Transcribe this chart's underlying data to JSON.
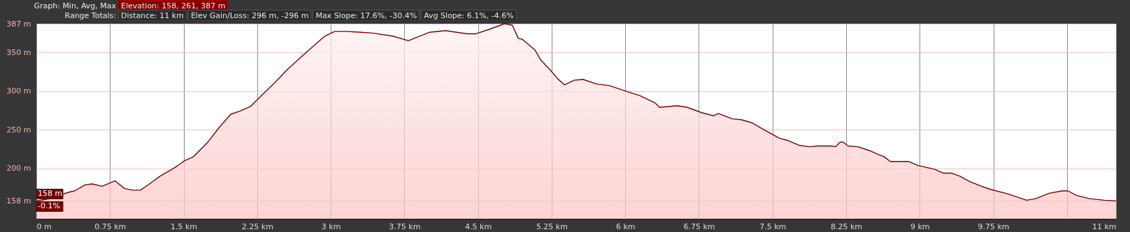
{
  "chart_data": {
    "type": "area",
    "annotations": [
      "Graph: Min, Avg, Max",
      "Elevation: 158, 261, 387 m",
      "Range Totals:",
      "Distance: 11 km",
      "Elev Gain/Loss: 296 m, -296 m",
      "Max Slope: 17.6%, -30.4%",
      "Avg Slope: 6.1%, -4.6%",
      {
        "text": "158 m",
        "x": 0,
        "y": 158
      },
      {
        "text": "-0.1%",
        "x": 0,
        "y": 158
      }
    ],
    "x": [
      0,
      0.14,
      0.32,
      0.39,
      0.5,
      0.57,
      0.67,
      0.8,
      0.9,
      0.98,
      1.06,
      1.13,
      1.26,
      1.41,
      1.51,
      1.6,
      1.74,
      1.87,
      1.98,
      2.07,
      2.18,
      2.3,
      2.43,
      2.56,
      2.68,
      2.84,
      2.94,
      3.04,
      3.17,
      3.42,
      3.63,
      3.79,
      4.01,
      4.17,
      4.39,
      4.48,
      4.62,
      4.77,
      4.85,
      4.91,
      4.95,
      5.08,
      5.14,
      5.23,
      5.31,
      5.38,
      5.48,
      5.57,
      5.71,
      5.84,
      5.98,
      6.15,
      6.3,
      6.35,
      6.53,
      6.63,
      6.78,
      6.9,
      6.95,
      7.09,
      7.18,
      7.29,
      7.4,
      7.47,
      7.57,
      7.66,
      7.77,
      7.88,
      7.96,
      8.1,
      8.14,
      8.19,
      8.22,
      8.27,
      8.37,
      8.49,
      8.56,
      8.64,
      8.7,
      8.78,
      8.89,
      8.98,
      9.08,
      9.15,
      9.24,
      9.32,
      9.41,
      9.51,
      9.63,
      9.72,
      9.9,
      10.09,
      10.18,
      10.32,
      10.45,
      10.51,
      10.6,
      10.73,
      10.88,
      11
    ],
    "series": [
      {
        "color": "#7a0000",
        "values": [
          158,
          161,
          169,
          171,
          179,
          180,
          177,
          184,
          174,
          172,
          172,
          178,
          190,
          201,
          210,
          215,
          233,
          254,
          270,
          274,
          280,
          295,
          311,
          328,
          342,
          360,
          371,
          377,
          377,
          375,
          371,
          365,
          376,
          378,
          374,
          374,
          380,
          387,
          385,
          368,
          367,
          353,
          340,
          328,
          316,
          308,
          314,
          315,
          309,
          307,
          301,
          294,
          285,
          279,
          281,
          279,
          272,
          268,
          271,
          264,
          263,
          259,
          251,
          246,
          239,
          236,
          230,
          228,
          229,
          229,
          228,
          234,
          234,
          229,
          228,
          223,
          219,
          215,
          209,
          209,
          209,
          204,
          201,
          199,
          194,
          194,
          190,
          183,
          177,
          173,
          167,
          159,
          161,
          168,
          171,
          171,
          165,
          161,
          159,
          158
        ]
      }
    ],
    "xlim": [
      0,
      11
    ],
    "xticks": [
      {
        "value": 0,
        "label": "0 m"
      },
      {
        "value": 0.75,
        "label": "0.75 km"
      },
      {
        "value": 1.5,
        "label": "1.5 km"
      },
      {
        "value": 2.25,
        "label": "2.25 km"
      },
      {
        "value": 3,
        "label": "3 km"
      },
      {
        "value": 3.75,
        "label": "3.75 km"
      },
      {
        "value": 4.5,
        "label": "4.5 km"
      },
      {
        "value": 5.25,
        "label": "5.25 km"
      },
      {
        "value": 6,
        "label": "6 km"
      },
      {
        "value": 6.75,
        "label": "6.75 km"
      },
      {
        "value": 7.5,
        "label": "7.5 km"
      },
      {
        "value": 8.25,
        "label": "8.25 km"
      },
      {
        "value": 9,
        "label": "9 km"
      },
      {
        "value": 9.75,
        "label": "9.75 km"
      },
      {
        "value": 10.5,
        "label": null
      },
      {
        "value": 11,
        "label": "11 km"
      }
    ],
    "ylim": [
      135,
      387
    ],
    "yticks": [
      {
        "value": 158,
        "label": "158 m"
      },
      {
        "value": 200,
        "label": "200 m"
      },
      {
        "value": 250,
        "label": "250 m"
      },
      {
        "value": 300,
        "label": "300 m"
      },
      {
        "value": 350,
        "label": "350 m"
      },
      {
        "value": 387,
        "label": "387 m"
      }
    ],
    "grid": true
  }
}
